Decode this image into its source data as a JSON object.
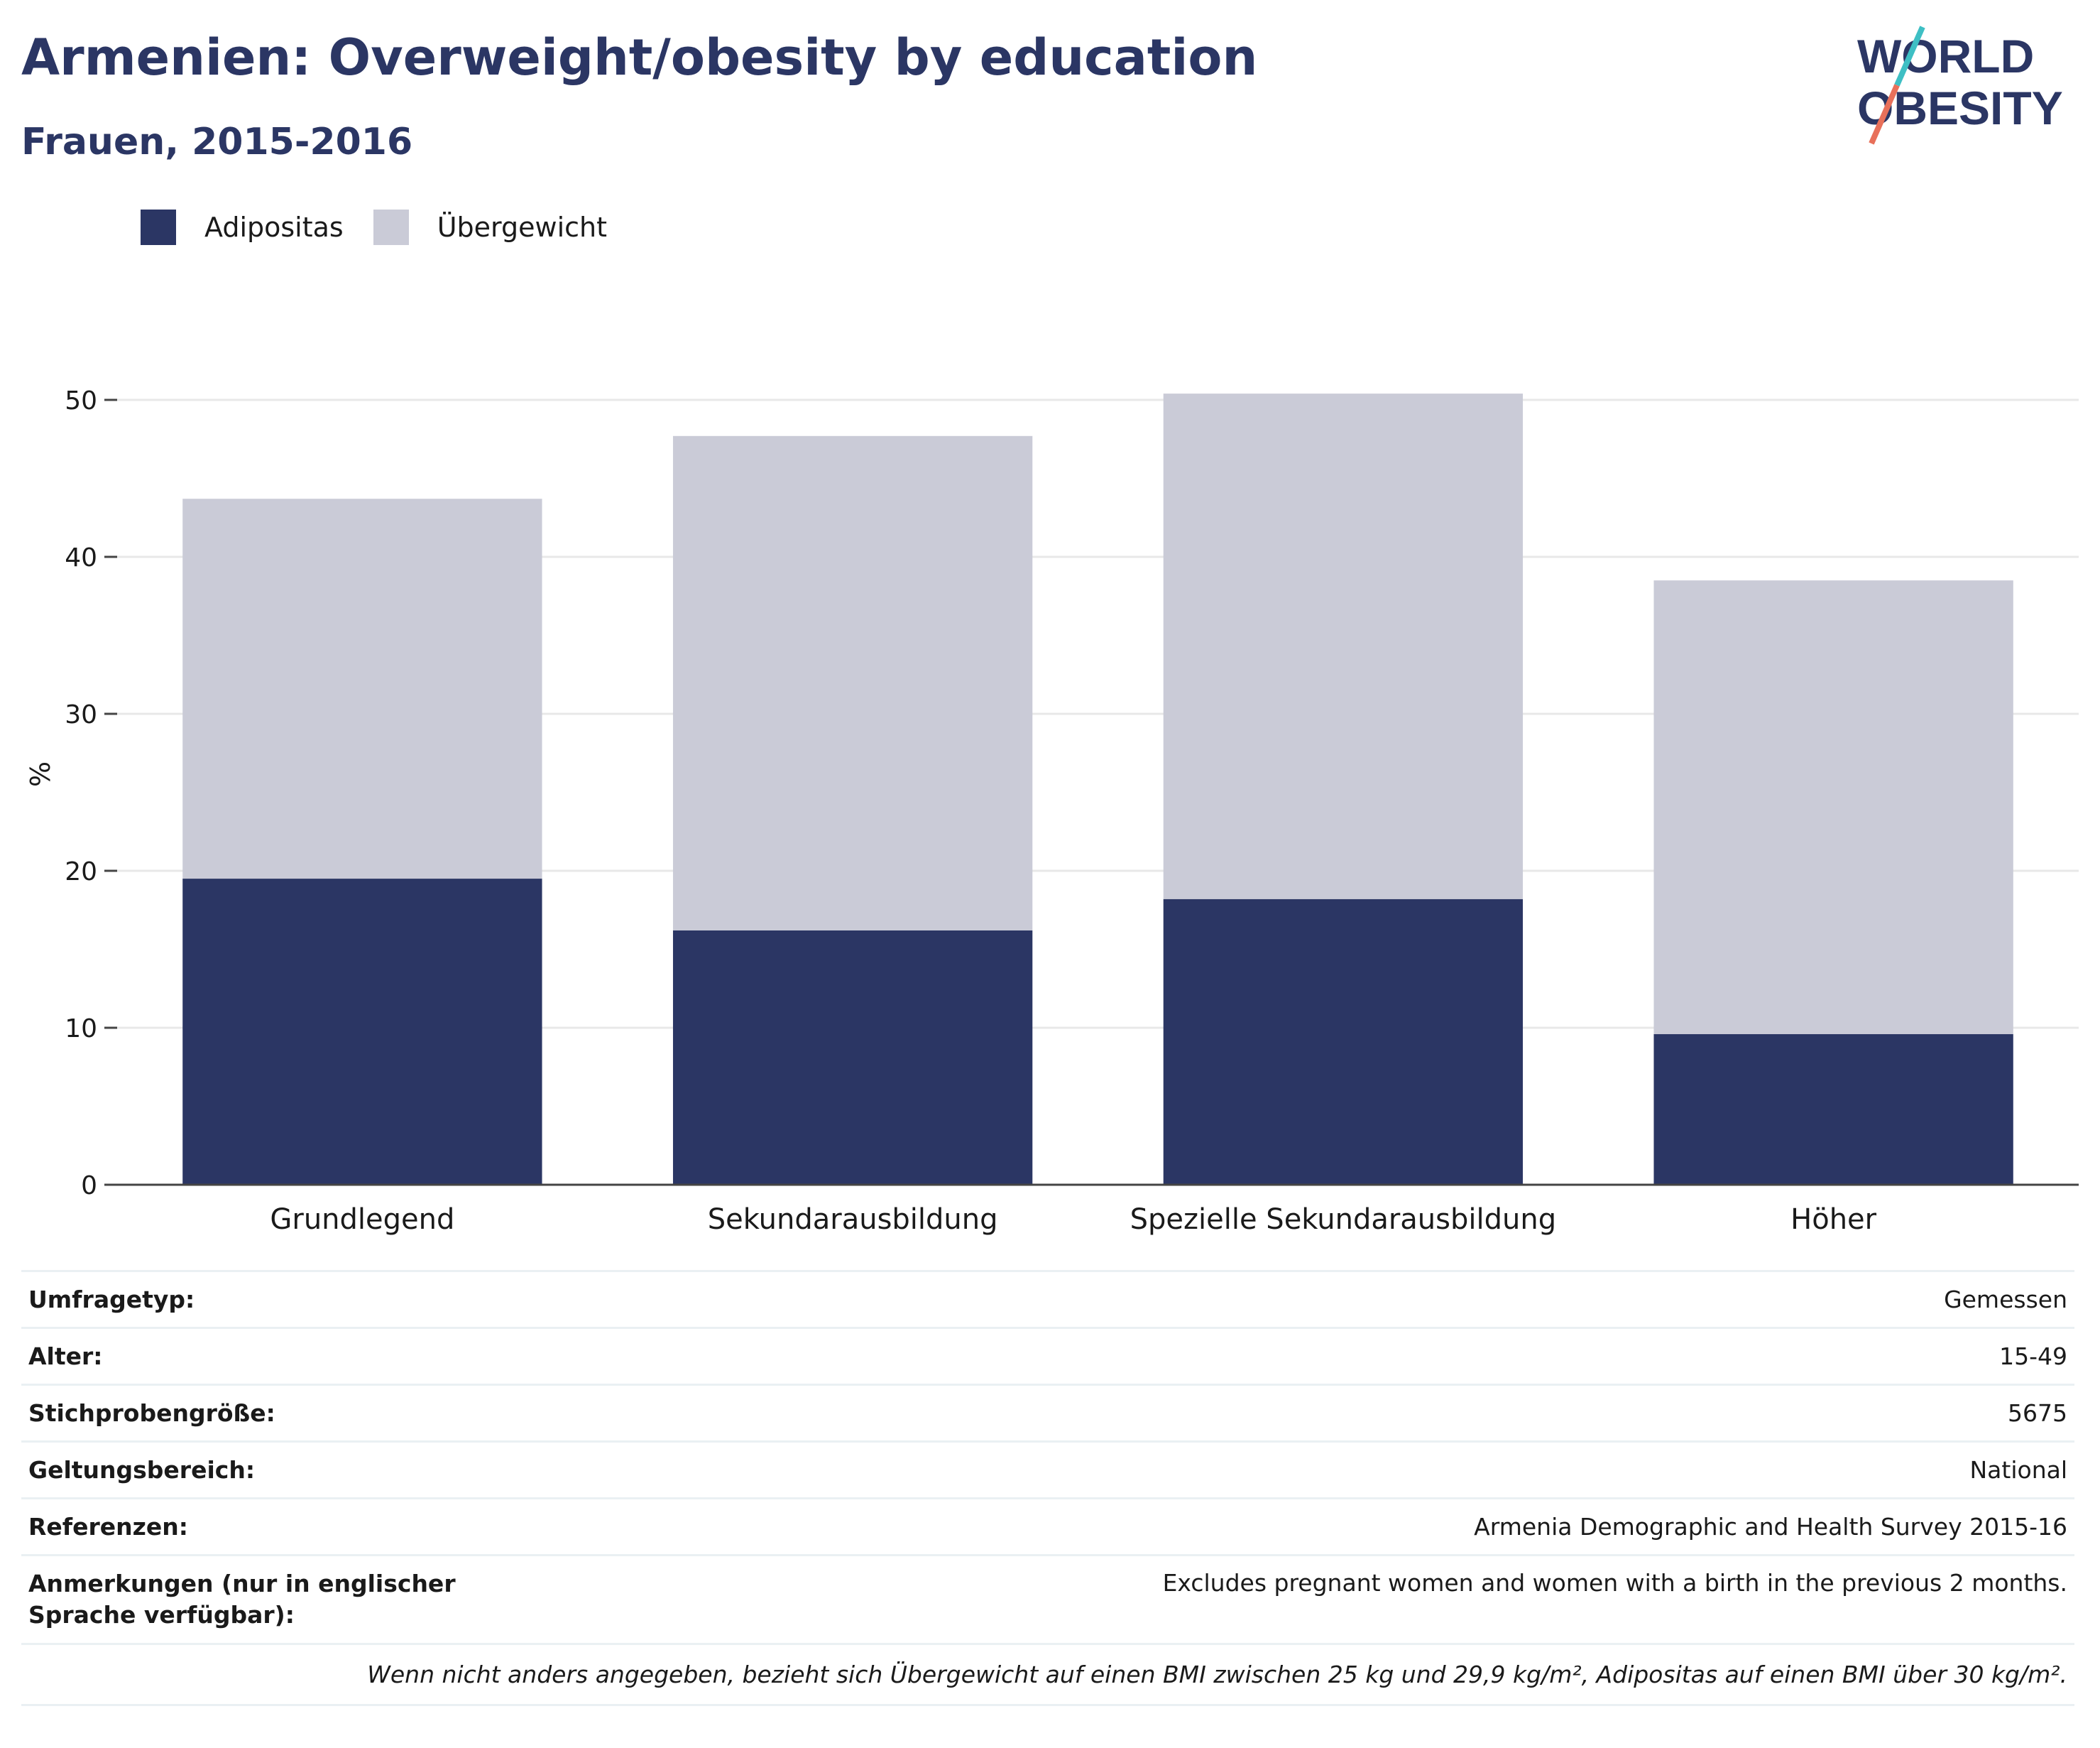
{
  "title": "Armenien: Overweight/obesity by education",
  "subtitle": "Frauen, 2015-2016",
  "logo": {
    "line1": "WORLD",
    "line2": "OBESITY"
  },
  "colors": {
    "obesity": "#2b3664",
    "overweight": "#cacbd7",
    "title": "#2b3664",
    "grid": "#e8e8e8"
  },
  "legend": [
    {
      "label": "Adipositas",
      "color": "#2b3664"
    },
    {
      "label": "Übergewicht",
      "color": "#cacbd7"
    }
  ],
  "chart_data": {
    "type": "bar",
    "stacked": true,
    "categories": [
      "Grundlegend",
      "Sekundarausbildung",
      "Spezielle Sekundarausbildung",
      "Höher"
    ],
    "series": [
      {
        "name": "Adipositas",
        "values": [
          19.5,
          16.2,
          18.2,
          9.6
        ]
      },
      {
        "name": "Übergewicht",
        "values": [
          24.2,
          31.5,
          32.2,
          28.9
        ]
      }
    ],
    "ylabel": "%",
    "ylim": [
      0,
      52
    ],
    "yticks": [
      0,
      10,
      20,
      30,
      40,
      50
    ],
    "grid": true,
    "legend_position": "top-left"
  },
  "meta": [
    {
      "key": "Umfragetyp:",
      "value": "Gemessen"
    },
    {
      "key": "Alter:",
      "value": "15-49"
    },
    {
      "key": "Stichprobengröße:",
      "value": "5675"
    },
    {
      "key": "Geltungsbereich:",
      "value": "National"
    },
    {
      "key": "Referenzen:",
      "value": "Armenia Demographic and Health Survey 2015-16"
    },
    {
      "key": "Anmerkungen (nur in englischer Sprache verfügbar):",
      "value": "Excludes pregnant women and women with a birth in the previous 2 months."
    }
  ],
  "footnote": "Wenn nicht anders angegeben, bezieht sich Übergewicht auf einen BMI zwischen 25 kg und 29,9 kg/m², Adipositas auf einen BMI über 30 kg/m²."
}
